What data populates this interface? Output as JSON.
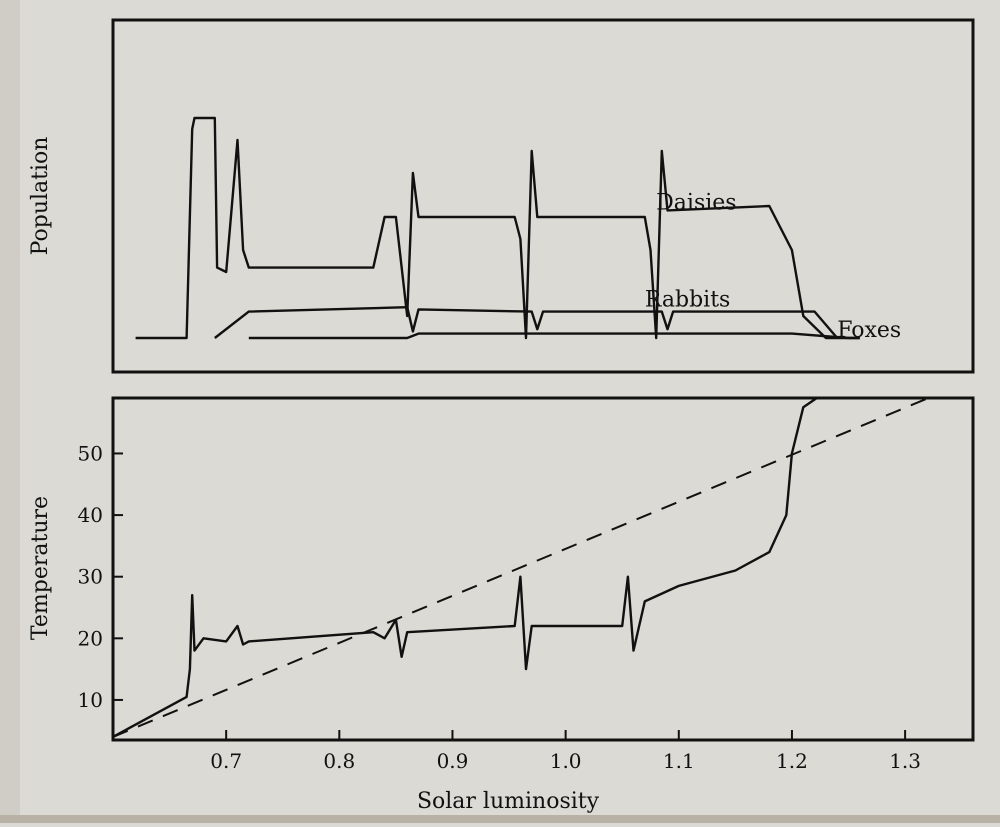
{
  "chart_data": [
    {
      "type": "line",
      "ylabel": "Population",
      "xlabel": "",
      "x_range": [
        0.6,
        1.36
      ],
      "series_labels": [
        {
          "name": "Daisies",
          "x": 1.08,
          "y": 0.62
        },
        {
          "name": "Rabbits",
          "x": 1.07,
          "y": 0.18
        },
        {
          "name": "Foxes",
          "x": 1.24,
          "y": 0.04
        }
      ],
      "series": [
        {
          "name": "Daisies",
          "points": [
            [
              0.62,
              0.0
            ],
            [
              0.665,
              0.0
            ],
            [
              0.67,
              0.95
            ],
            [
              0.672,
              1.0
            ],
            [
              0.69,
              1.0
            ],
            [
              0.692,
              0.32
            ],
            [
              0.7,
              0.3
            ],
            [
              0.71,
              0.9
            ],
            [
              0.715,
              0.4
            ],
            [
              0.72,
              0.32
            ],
            [
              0.83,
              0.32
            ],
            [
              0.84,
              0.55
            ],
            [
              0.85,
              0.55
            ],
            [
              0.86,
              0.1
            ],
            [
              0.865,
              0.75
            ],
            [
              0.87,
              0.55
            ],
            [
              0.955,
              0.55
            ],
            [
              0.96,
              0.45
            ],
            [
              0.965,
              0.0
            ],
            [
              0.97,
              0.85
            ],
            [
              0.975,
              0.55
            ],
            [
              1.07,
              0.55
            ],
            [
              1.075,
              0.4
            ],
            [
              1.08,
              0.0
            ],
            [
              1.085,
              0.85
            ],
            [
              1.09,
              0.58
            ],
            [
              1.18,
              0.6
            ],
            [
              1.2,
              0.4
            ],
            [
              1.21,
              0.1
            ],
            [
              1.23,
              0.0
            ],
            [
              1.26,
              0.0
            ]
          ]
        },
        {
          "name": "Rabbits",
          "points": [
            [
              0.69,
              0.0
            ],
            [
              0.72,
              0.12
            ],
            [
              0.86,
              0.14
            ],
            [
              0.865,
              0.03
            ],
            [
              0.87,
              0.13
            ],
            [
              0.97,
              0.12
            ],
            [
              0.975,
              0.04
            ],
            [
              0.98,
              0.12
            ],
            [
              1.085,
              0.12
            ],
            [
              1.09,
              0.04
            ],
            [
              1.095,
              0.12
            ],
            [
              1.22,
              0.12
            ],
            [
              1.24,
              0.0
            ]
          ]
        },
        {
          "name": "Foxes",
          "points": [
            [
              0.72,
              0.0
            ],
            [
              0.86,
              0.0
            ],
            [
              0.87,
              0.02
            ],
            [
              0.97,
              0.02
            ],
            [
              1.2,
              0.02
            ],
            [
              1.25,
              0.0
            ],
            [
              1.26,
              0.0
            ]
          ]
        }
      ]
    },
    {
      "type": "line",
      "xlabel": "Solar luminosity",
      "ylabel": "Temperature",
      "xlim": [
        0.6,
        1.36
      ],
      "ylim": [
        3.5,
        59
      ],
      "x_ticks": [
        "0.7",
        "0.8",
        "0.9",
        "1.0",
        "1.1",
        "1.2",
        "1.3"
      ],
      "y_ticks": [
        "10",
        "20",
        "30",
        "40",
        "50"
      ],
      "series": [
        {
          "name": "",
          "style": "dashed",
          "points": [
            [
              0.6,
              4.0
            ],
            [
              1.36,
              62.0
            ]
          ]
        },
        {
          "name": "",
          "style": "solid",
          "points": [
            [
              0.6,
              4.0
            ],
            [
              0.665,
              10.5
            ],
            [
              0.668,
              15
            ],
            [
              0.67,
              27
            ],
            [
              0.672,
              18
            ],
            [
              0.68,
              20
            ],
            [
              0.7,
              19.5
            ],
            [
              0.71,
              22
            ],
            [
              0.715,
              19
            ],
            [
              0.72,
              19.5
            ],
            [
              0.83,
              21
            ],
            [
              0.84,
              20
            ],
            [
              0.85,
              23
            ],
            [
              0.855,
              17
            ],
            [
              0.86,
              21
            ],
            [
              0.955,
              22
            ],
            [
              0.96,
              30
            ],
            [
              0.965,
              15
            ],
            [
              0.97,
              22
            ],
            [
              1.05,
              22
            ],
            [
              1.055,
              30
            ],
            [
              1.06,
              18
            ],
            [
              1.07,
              26
            ],
            [
              1.1,
              28.5
            ],
            [
              1.15,
              31
            ],
            [
              1.18,
              34
            ],
            [
              1.195,
              40
            ],
            [
              1.2,
              50
            ],
            [
              1.21,
              57.5
            ],
            [
              1.23,
              60
            ],
            [
              1.3,
              62
            ]
          ]
        }
      ]
    }
  ]
}
